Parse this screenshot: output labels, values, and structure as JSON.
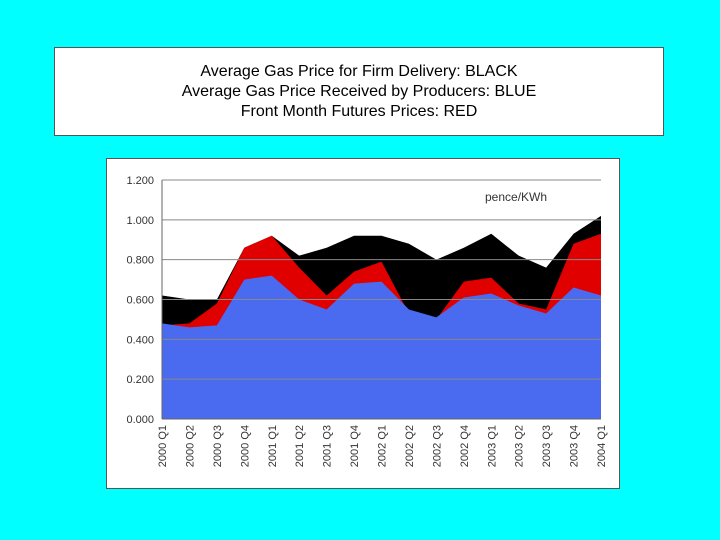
{
  "legend_box": {
    "lines": [
      "Average Gas Price for Firm Delivery: BLACK",
      "Average Gas Price Received by Producers: BLUE",
      "Front Month Futures Prices: RED"
    ]
  },
  "chart_data": {
    "type": "area",
    "unit_label": "pence/KWh",
    "categories": [
      "2000 Q1",
      "2000 Q2",
      "2000 Q3",
      "2000 Q4",
      "2001 Q1",
      "2001 Q2",
      "2001 Q3",
      "2001 Q4",
      "2002 Q1",
      "2002 Q2",
      "2002 Q3",
      "2002 Q4",
      "2003 Q1",
      "2003 Q2",
      "2003 Q3",
      "2003 Q4",
      "2004 Q1"
    ],
    "ylim": [
      0,
      1.2
    ],
    "yticks": [
      "0.000",
      "0.200",
      "0.400",
      "0.600",
      "0.800",
      "1.000",
      "1.200"
    ],
    "grid": true,
    "series": [
      {
        "key": "firm",
        "color": "#000000",
        "values": [
          0.62,
          0.6,
          0.6,
          0.86,
          0.92,
          0.82,
          0.86,
          0.92,
          0.92,
          0.88,
          0.8,
          0.86,
          0.93,
          0.82,
          0.76,
          0.93,
          1.02
        ]
      },
      {
        "key": "futures",
        "color": "#E00000",
        "values": [
          0.47,
          0.48,
          0.58,
          0.86,
          0.92,
          0.76,
          0.62,
          0.74,
          0.79,
          0.53,
          0.5,
          0.69,
          0.71,
          0.58,
          0.55,
          0.88,
          0.93
        ]
      },
      {
        "key": "producers",
        "color": "#4A6BEF",
        "values": [
          0.48,
          0.46,
          0.47,
          0.7,
          0.72,
          0.6,
          0.55,
          0.68,
          0.69,
          0.55,
          0.51,
          0.61,
          0.63,
          0.57,
          0.53,
          0.66,
          0.62
        ]
      }
    ]
  }
}
